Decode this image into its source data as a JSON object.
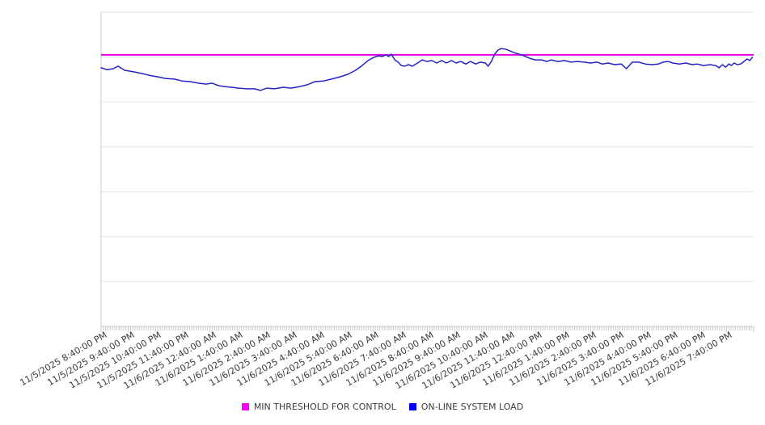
{
  "chart_data": {
    "type": "line",
    "title": "",
    "xlabel": "",
    "ylabel": "",
    "ylim": [
      0,
      100
    ],
    "y_axis_labels_visible": false,
    "y_gridline_count": 8,
    "grid": "horizontal-only",
    "legend_position": "bottom-center",
    "x_axis": {
      "minor_ticks_per_hour": 12,
      "minor_tick_interval_minutes": 5,
      "span_hours": 24,
      "tick_labels": [
        "11/5/2025 8:40:00 PM",
        "11/5/2025 9:40:00 PM",
        "11/5/2025 10:40:00 PM",
        "11/5/2025 11:40:00 PM",
        "11/6/2025 12:40:00 AM",
        "11/6/2025 1:40:00 AM",
        "11/6/2025 2:40:00 AM",
        "11/6/2025 3:40:00 AM",
        "11/6/2025 4:40:00 AM",
        "11/6/2025 5:40:00 AM",
        "11/6/2025 6:40:00 AM",
        "11/6/2025 7:40:00 AM",
        "11/6/2025 8:40:00 AM",
        "11/6/2025 9:40:00 AM",
        "11/6/2025 10:40:00 AM",
        "11/6/2025 11:40:00 AM",
        "11/6/2025 12:40:00 PM",
        "11/6/2025 1:40:00 PM",
        "11/6/2025 2:40:00 PM",
        "11/6/2025 3:40:00 PM",
        "11/6/2025 4:40:00 PM",
        "11/6/2025 5:40:00 PM",
        "11/6/2025 6:40:00 PM",
        "11/6/2025 7:40:00 PM"
      ]
    },
    "series": [
      {
        "name": "MIN THRESHOLD FOR CONTROL",
        "type": "constant-threshold-line",
        "color": "#e300e3",
        "legend_color": "#ff00ff",
        "value": 86.4
      },
      {
        "name": "ON-LINE SYSTEM LOAD",
        "type": "line",
        "color": "#2424c3",
        "legend_color": "#0000ff",
        "points": [
          [
            0.0,
            82.3
          ],
          [
            0.009,
            81.7
          ],
          [
            0.019,
            82.0
          ],
          [
            0.026,
            82.8
          ],
          [
            0.036,
            81.5
          ],
          [
            0.05,
            81.0
          ],
          [
            0.062,
            80.5
          ],
          [
            0.074,
            79.9
          ],
          [
            0.087,
            79.4
          ],
          [
            0.099,
            78.9
          ],
          [
            0.112,
            78.7
          ],
          [
            0.124,
            78.1
          ],
          [
            0.136,
            77.9
          ],
          [
            0.149,
            77.4
          ],
          [
            0.161,
            77.1
          ],
          [
            0.17,
            77.4
          ],
          [
            0.18,
            76.6
          ],
          [
            0.19,
            76.3
          ],
          [
            0.2,
            76.1
          ],
          [
            0.211,
            75.8
          ],
          [
            0.223,
            75.6
          ],
          [
            0.235,
            75.6
          ],
          [
            0.244,
            75.1
          ],
          [
            0.254,
            75.8
          ],
          [
            0.266,
            75.6
          ],
          [
            0.279,
            76.1
          ],
          [
            0.291,
            75.8
          ],
          [
            0.304,
            76.3
          ],
          [
            0.316,
            76.9
          ],
          [
            0.328,
            77.9
          ],
          [
            0.341,
            78.1
          ],
          [
            0.353,
            78.7
          ],
          [
            0.366,
            79.4
          ],
          [
            0.378,
            80.2
          ],
          [
            0.39,
            81.5
          ],
          [
            0.4,
            83.0
          ],
          [
            0.409,
            84.6
          ],
          [
            0.418,
            85.6
          ],
          [
            0.425,
            86.1
          ],
          [
            0.431,
            85.9
          ],
          [
            0.436,
            86.4
          ],
          [
            0.441,
            85.9
          ],
          [
            0.445,
            86.6
          ],
          [
            0.45,
            84.8
          ],
          [
            0.455,
            84.1
          ],
          [
            0.46,
            83.0
          ],
          [
            0.465,
            82.8
          ],
          [
            0.471,
            83.3
          ],
          [
            0.477,
            82.8
          ],
          [
            0.485,
            83.8
          ],
          [
            0.492,
            84.8
          ],
          [
            0.499,
            84.3
          ],
          [
            0.507,
            84.6
          ],
          [
            0.514,
            83.8
          ],
          [
            0.522,
            84.6
          ],
          [
            0.529,
            83.8
          ],
          [
            0.537,
            84.6
          ],
          [
            0.544,
            83.8
          ],
          [
            0.551,
            84.3
          ],
          [
            0.559,
            83.5
          ],
          [
            0.566,
            84.3
          ],
          [
            0.574,
            83.5
          ],
          [
            0.581,
            84.1
          ],
          [
            0.589,
            83.8
          ],
          [
            0.593,
            82.8
          ],
          [
            0.598,
            84.3
          ],
          [
            0.603,
            86.6
          ],
          [
            0.608,
            87.9
          ],
          [
            0.613,
            88.4
          ],
          [
            0.62,
            88.2
          ],
          [
            0.626,
            87.7
          ],
          [
            0.633,
            87.1
          ],
          [
            0.641,
            86.6
          ],
          [
            0.648,
            86.1
          ],
          [
            0.657,
            85.3
          ],
          [
            0.665,
            84.8
          ],
          [
            0.675,
            84.8
          ],
          [
            0.683,
            84.3
          ],
          [
            0.69,
            84.8
          ],
          [
            0.7,
            84.3
          ],
          [
            0.71,
            84.6
          ],
          [
            0.72,
            84.1
          ],
          [
            0.73,
            84.3
          ],
          [
            0.74,
            84.1
          ],
          [
            0.75,
            83.8
          ],
          [
            0.76,
            84.1
          ],
          [
            0.768,
            83.5
          ],
          [
            0.777,
            83.8
          ],
          [
            0.787,
            83.3
          ],
          [
            0.797,
            83.5
          ],
          [
            0.805,
            82.0
          ],
          [
            0.814,
            84.1
          ],
          [
            0.824,
            84.1
          ],
          [
            0.834,
            83.5
          ],
          [
            0.844,
            83.3
          ],
          [
            0.854,
            83.5
          ],
          [
            0.861,
            84.1
          ],
          [
            0.869,
            84.3
          ],
          [
            0.876,
            83.8
          ],
          [
            0.886,
            83.5
          ],
          [
            0.896,
            83.8
          ],
          [
            0.906,
            83.3
          ],
          [
            0.913,
            83.5
          ],
          [
            0.923,
            83.0
          ],
          [
            0.933,
            83.3
          ],
          [
            0.942,
            83.0
          ],
          [
            0.947,
            82.3
          ],
          [
            0.952,
            83.3
          ],
          [
            0.957,
            82.5
          ],
          [
            0.962,
            83.5
          ],
          [
            0.966,
            83.0
          ],
          [
            0.97,
            83.8
          ],
          [
            0.975,
            83.3
          ],
          [
            0.98,
            83.5
          ],
          [
            0.985,
            84.3
          ],
          [
            0.99,
            85.1
          ],
          [
            0.994,
            84.6
          ],
          [
            0.998,
            85.6
          ]
        ]
      }
    ],
    "colors": {
      "background": "#ffffff",
      "gridline": "#e6e6e6",
      "axis": "#c9c9c9",
      "tick": "#c9c9c9",
      "label_text": "#3c3c3c"
    }
  }
}
